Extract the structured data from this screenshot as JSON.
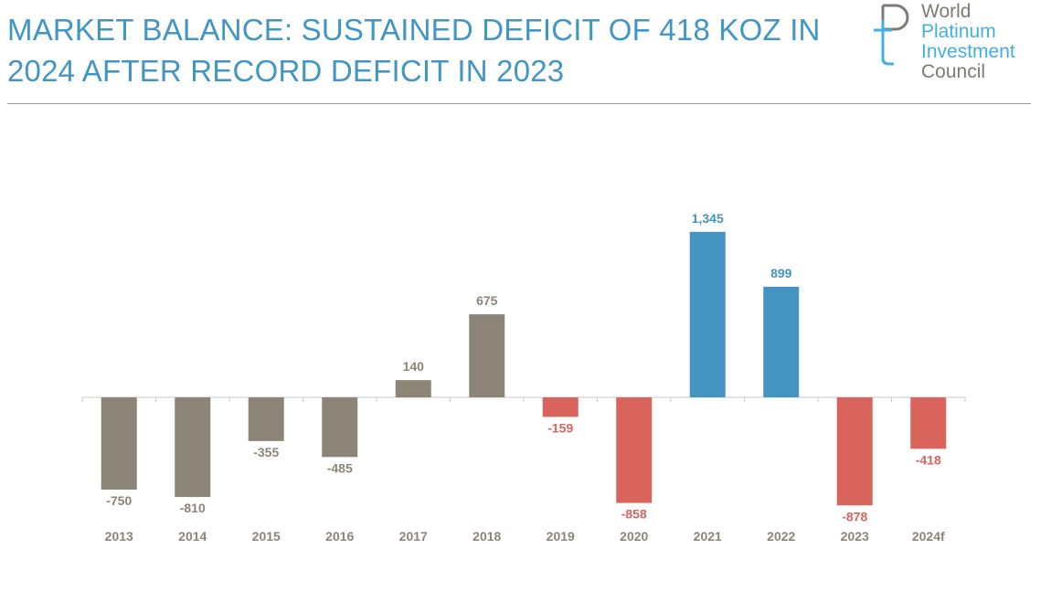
{
  "header": {
    "title_line1": "MARKET BALANCE: SUSTAINED DEFICIT OF 418 KOZ IN",
    "title_line2": "2024 AFTER RECORD DEFICIT IN 2023"
  },
  "logo": {
    "line1": "World",
    "line2": "Platinum",
    "line3": "Investment",
    "line4": "Council",
    "icon": "wpic-logo-icon"
  },
  "colors": {
    "title": "#4296c4",
    "grey_bar": "#8c8477",
    "red_bar": "#d8645c",
    "blue_bar": "#4394c1",
    "logo_dark": "#7f7a74",
    "logo_blue": "#45aee0"
  },
  "chart_data": {
    "type": "bar",
    "title": "",
    "xlabel": "",
    "ylabel": "",
    "ylim": [
      -900,
      1400
    ],
    "grid": false,
    "categories": [
      "2013",
      "2014",
      "2015",
      "2016",
      "2017",
      "2018",
      "2019",
      "2020",
      "2021",
      "2022",
      "2023",
      "2024f"
    ],
    "values": [
      -750,
      -810,
      -355,
      -485,
      140,
      675,
      -159,
      -858,
      1345,
      899,
      -878,
      -418
    ],
    "labels": [
      "-750",
      "-810",
      "-355",
      "-485",
      "140",
      "675",
      "-159",
      "-858",
      "1,345",
      "899",
      "-878",
      "-418"
    ],
    "bar_colors": [
      "grey",
      "grey",
      "grey",
      "grey",
      "grey",
      "grey",
      "red",
      "red",
      "blue",
      "blue",
      "red",
      "red"
    ]
  }
}
